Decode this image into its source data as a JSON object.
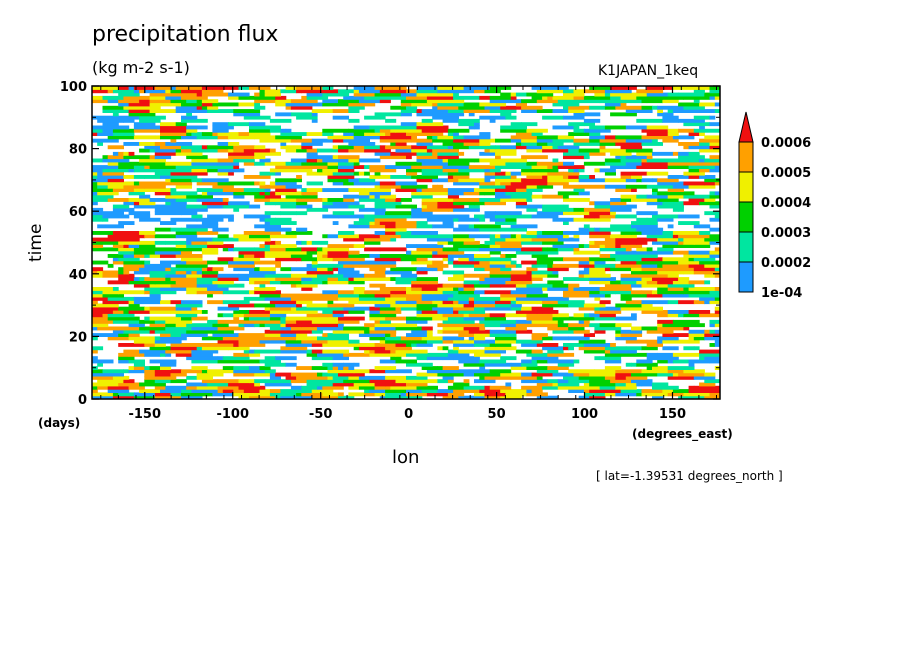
{
  "chart_data": {
    "type": "heatmap",
    "title": "precipitation flux",
    "units": "(kg m-2 s-1)",
    "run_label": "K1JAPAN_1keq",
    "xlabel": "lon",
    "xunit": "(degrees_east)",
    "ylabel": "time",
    "yunit": "(days)",
    "note": "[ lat=-1.39531 degrees_north ]",
    "xlim": [
      -180,
      177
    ],
    "ylim": [
      0,
      100
    ],
    "xticks": [
      -150,
      -100,
      -50,
      0,
      50,
      100,
      150
    ],
    "xtick_labels": [
      "-150",
      "-100",
      "-50",
      "0",
      "50",
      "100",
      "150"
    ],
    "yticks": [
      0,
      20,
      40,
      60,
      80,
      100
    ],
    "ytick_labels": [
      "0",
      "20",
      "40",
      "60",
      "80",
      "100"
    ],
    "levels": [
      0.0001,
      0.0002,
      0.0003,
      0.0004,
      0.0005,
      0.0006
    ],
    "colorbar_labels": [
      "1e-04",
      "0.0002",
      "0.0003",
      "0.0004",
      "0.0005",
      "0.0006"
    ],
    "colors": [
      "#1e9bff",
      "#00e6a0",
      "#00d000",
      "#f0f000",
      "#ffa000",
      "#f01010"
    ],
    "features": [
      {
        "lon": -150,
        "time": 95,
        "value": 0.0006
      },
      {
        "lon": -120,
        "time": 98,
        "value": 0.0006
      },
      {
        "lon": -135,
        "time": 86,
        "value": 0.0006
      },
      {
        "lon": -5,
        "time": 84,
        "value": 0.0006
      },
      {
        "lon": 10,
        "time": 86,
        "value": 0.0005
      },
      {
        "lon": 140,
        "time": 85,
        "value": 0.0006
      },
      {
        "lon": -90,
        "time": 79,
        "value": 0.0005
      },
      {
        "lon": 20,
        "time": 62,
        "value": 0.0006
      },
      {
        "lon": -10,
        "time": 56,
        "value": 0.0006
      },
      {
        "lon": 105,
        "time": 59,
        "value": 0.0006
      },
      {
        "lon": 60,
        "time": 68,
        "value": 0.0006
      },
      {
        "lon": 75,
        "time": 70,
        "value": 0.0005
      },
      {
        "lon": 165,
        "time": 42,
        "value": 0.0006
      },
      {
        "lon": 10,
        "time": 36,
        "value": 0.0006
      },
      {
        "lon": -10,
        "time": 34,
        "value": 0.0005
      },
      {
        "lon": 65,
        "time": 39,
        "value": 0.0006
      },
      {
        "lon": 145,
        "time": 38,
        "value": 0.0005
      },
      {
        "lon": -175,
        "time": 28,
        "value": 0.0006
      },
      {
        "lon": 75,
        "time": 28,
        "value": 0.0006
      },
      {
        "lon": -100,
        "time": 18,
        "value": 0.0005
      },
      {
        "lon": -15,
        "time": 16,
        "value": 0.0006
      },
      {
        "lon": -140,
        "time": 8,
        "value": 0.0006
      },
      {
        "lon": -95,
        "time": 4,
        "value": 0.0006
      },
      {
        "lon": -10,
        "time": 5,
        "value": 0.0006
      },
      {
        "lon": 50,
        "time": 2,
        "value": 0.0005
      },
      {
        "lon": 170,
        "time": 3,
        "value": 0.0006
      },
      {
        "lon": 120,
        "time": 8,
        "value": 0.0005
      },
      {
        "lon": -40,
        "time": 46,
        "value": 0.0005
      },
      {
        "lon": -160,
        "time": 52,
        "value": 0.0005
      },
      {
        "lon": 120,
        "time": 50,
        "value": 0.0005
      },
      {
        "lon": -60,
        "time": 24,
        "value": 0.0005
      },
      {
        "lon": 35,
        "time": 22,
        "value": 0.0005
      }
    ]
  }
}
